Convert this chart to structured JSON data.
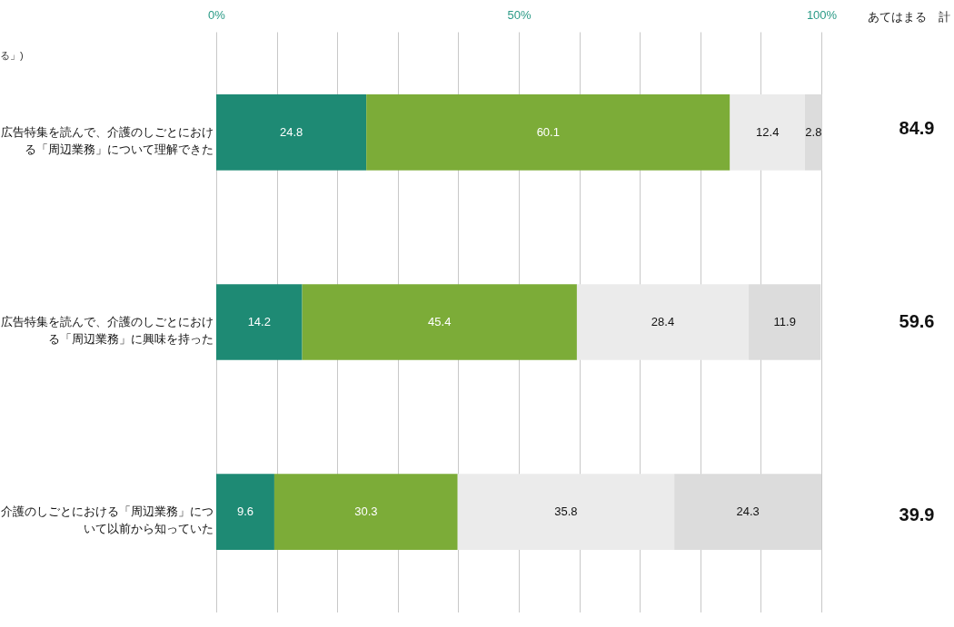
{
  "chart_data": {
    "type": "bar",
    "legend": false,
    "orientation": "horizontal",
    "stacked": true,
    "data_labels": true,
    "grid": "x",
    "categories": [
      "広告特集を読んで、介護のしごとにおける「周辺業務」について理解できた",
      "広告特集を読んで、介護のしごとにおける「周辺業務」に興味を持った",
      "介護のしごとにおける「周辺業務」について以前から知っていた"
    ],
    "series": [
      {
        "color": "#1e8a74",
        "values": [
          24.8,
          14.2,
          9.6
        ]
      },
      {
        "color": "#7cac38",
        "values": [
          60.1,
          45.4,
          30.3
        ]
      },
      {
        "color": "#ebebeb",
        "values": [
          12.4,
          28.4,
          35.8
        ]
      },
      {
        "color": "#dcdcdc",
        "values": [
          2.8,
          11.9,
          24.3
        ]
      }
    ],
    "xlim": [
      0,
      100
    ],
    "xticks": [
      {
        "value": 0,
        "label": "0%"
      },
      {
        "value": 10,
        "label": null
      },
      {
        "value": 20,
        "label": null
      },
      {
        "value": 30,
        "label": null
      },
      {
        "value": 40,
        "label": null
      },
      {
        "value": 50,
        "label": "50%"
      },
      {
        "value": 60,
        "label": null
      },
      {
        "value": 70,
        "label": null
      },
      {
        "value": 80,
        "label": null
      },
      {
        "value": 90,
        "label": null
      },
      {
        "value": 100,
        "label": "100%"
      }
    ],
    "annotations": [
      "る」)",
      "あてはまる　計",
      "84.9",
      "59.6",
      "39.9"
    ]
  }
}
